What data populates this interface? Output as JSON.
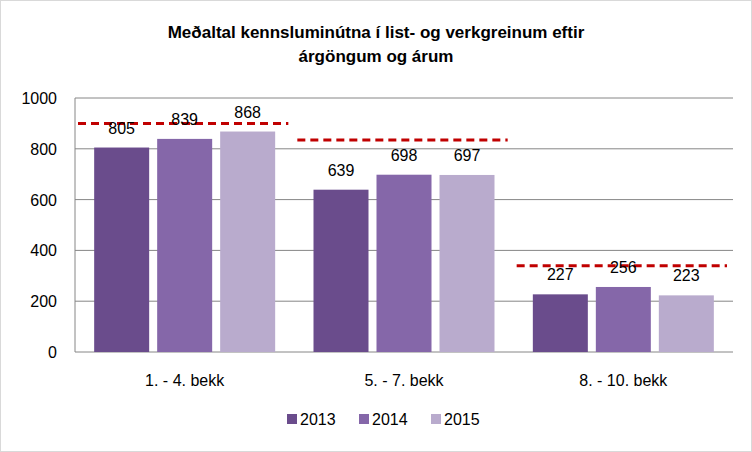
{
  "chart_data": {
    "type": "bar",
    "title": [
      "Meðaltal kennsluminútna í list- og verkgreinum eftir",
      "árgöngum og árum"
    ],
    "categories": [
      "1. - 4. bekk",
      "5. - 7. bekk",
      "8. - 10. bekk"
    ],
    "series": [
      {
        "name": "2013",
        "color": "#6a4c8c",
        "values": [
          805,
          639,
          227
        ]
      },
      {
        "name": "2014",
        "color": "#8567a9",
        "values": [
          839,
          698,
          256
        ]
      },
      {
        "name": "2015",
        "color": "#b9abcd",
        "values": [
          868,
          697,
          223
        ]
      }
    ],
    "targets": [
      900,
      835,
      340
    ],
    "ylim": [
      0,
      1000
    ],
    "yticks": [
      0,
      200,
      400,
      600,
      800,
      1000
    ],
    "grid": true,
    "data_labels": true,
    "legend": "bottom"
  }
}
